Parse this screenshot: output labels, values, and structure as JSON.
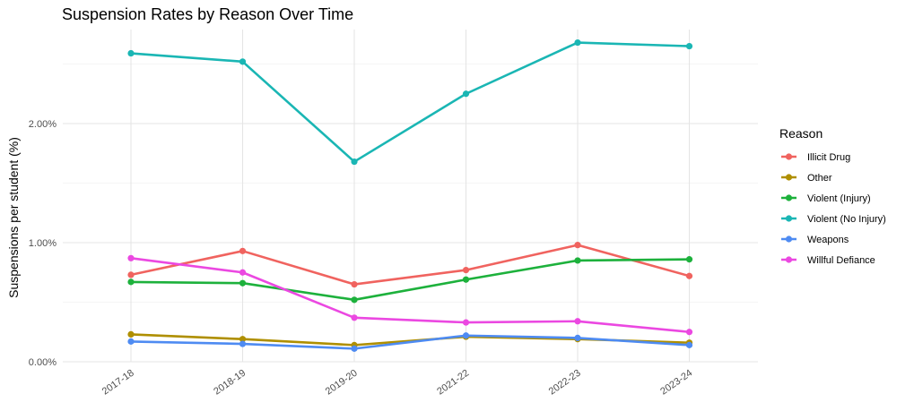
{
  "chart_data": {
    "type": "line",
    "title": "Suspension Rates by Reason Over Time",
    "xlabel": "",
    "ylabel": "Suspensions per student (%)",
    "categories": [
      "2017-18",
      "2018-19",
      "2019-20",
      "2021-22",
      "2022-23",
      "2023-24"
    ],
    "ylim": [
      0,
      2.8
    ],
    "y_ticks": [
      0,
      1,
      2
    ],
    "y_tick_labels": [
      "0.00%",
      "1.00%",
      "2.00%"
    ],
    "grid": true,
    "legend": {
      "title": "Reason",
      "position": "right"
    },
    "series": [
      {
        "name": "Illicit Drug",
        "color": "#F0635F",
        "values": [
          0.73,
          0.93,
          0.65,
          0.77,
          0.98,
          0.72
        ]
      },
      {
        "name": "Other",
        "color": "#AF8F00",
        "values": [
          0.23,
          0.19,
          0.14,
          0.21,
          0.19,
          0.16
        ]
      },
      {
        "name": "Violent (Injury)",
        "color": "#1DB13C",
        "values": [
          0.67,
          0.66,
          0.52,
          0.69,
          0.85,
          0.86
        ]
      },
      {
        "name": "Violent (No Injury)",
        "color": "#1AB6B4",
        "values": [
          2.59,
          2.52,
          1.68,
          2.25,
          2.68,
          2.65
        ]
      },
      {
        "name": "Weapons",
        "color": "#4E8BF2",
        "values": [
          0.17,
          0.15,
          0.11,
          0.22,
          0.2,
          0.14
        ]
      },
      {
        "name": "Willful Defiance",
        "color": "#EB48E1",
        "values": [
          0.87,
          0.75,
          0.37,
          0.33,
          0.34,
          0.25
        ]
      }
    ]
  }
}
